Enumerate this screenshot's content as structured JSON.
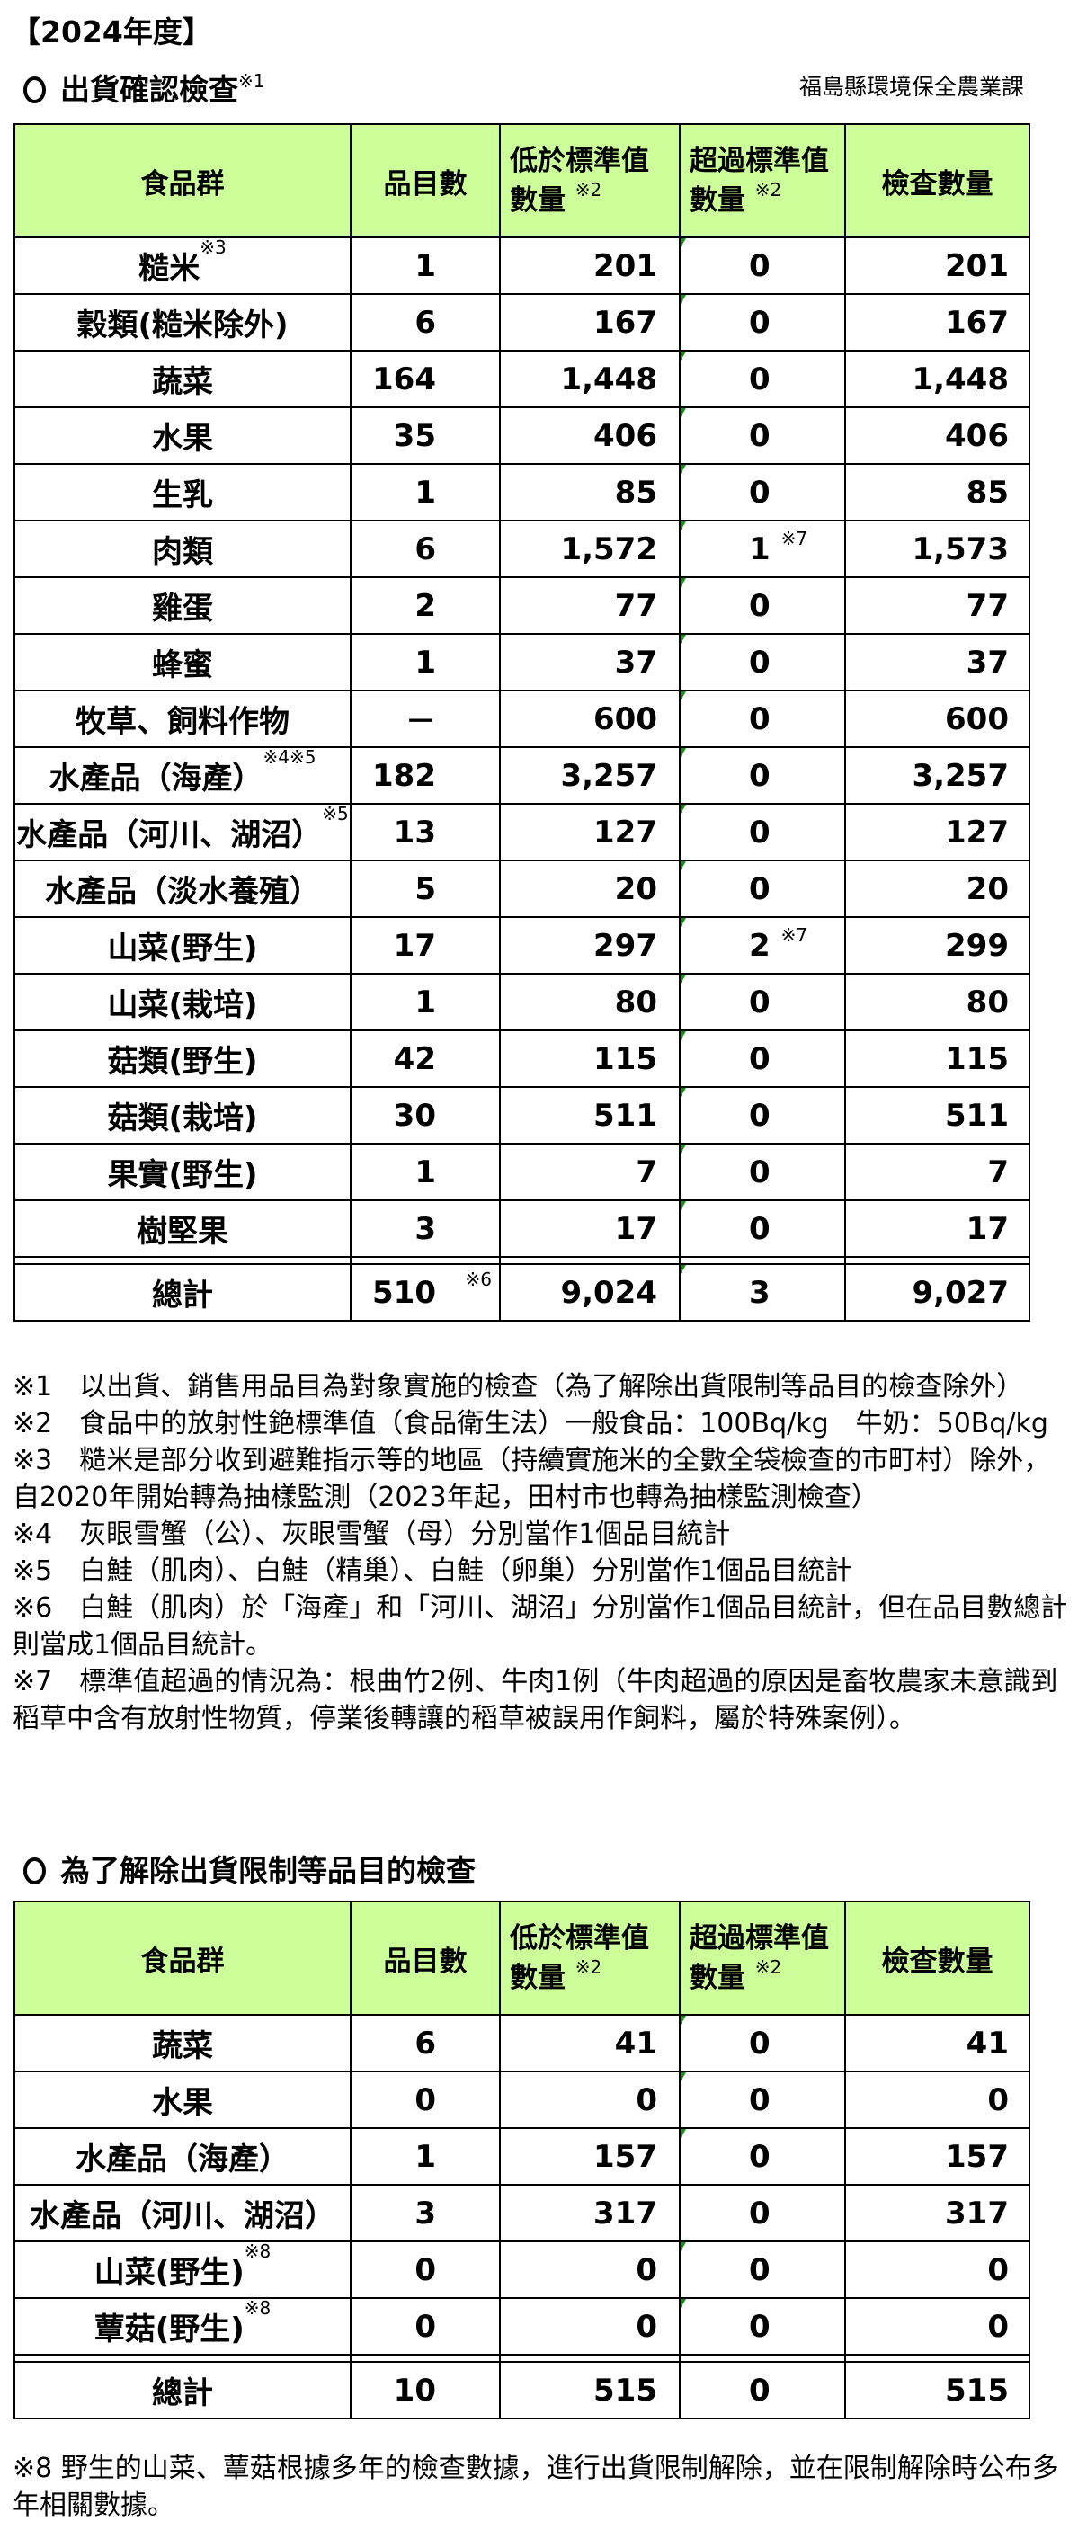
{
  "year_title": "【2024年度】",
  "section1": {
    "title": "出貨確認檢查",
    "title_note": "※1",
    "agency": "福島縣環境保全農業課",
    "headers": {
      "food_group": "食品群",
      "item_count": "品目數",
      "below_line1": "低於標準值",
      "below_line2": "數量",
      "below_note": "※2",
      "above_line1": "超過標準值",
      "above_line2": "數量",
      "above_note": "※2",
      "inspections": "檢查數量"
    },
    "rows": [
      {
        "name": "糙米",
        "note": "※3",
        "items": "1",
        "below": "201",
        "above": "0",
        "above_note": "",
        "total": "201",
        "marker": true
      },
      {
        "name": "穀類(糙米除外)",
        "note": "",
        "items": "6",
        "below": "167",
        "above": "0",
        "above_note": "",
        "total": "167",
        "marker": true
      },
      {
        "name": "蔬菜",
        "note": "",
        "items": "164",
        "below": "1,448",
        "above": "0",
        "above_note": "",
        "total": "1,448",
        "marker": true
      },
      {
        "name": "水果",
        "note": "",
        "items": "35",
        "below": "406",
        "above": "0",
        "above_note": "",
        "total": "406",
        "marker": true
      },
      {
        "name": "生乳",
        "note": "",
        "items": "1",
        "below": "85",
        "above": "0",
        "above_note": "",
        "total": "85",
        "marker": true
      },
      {
        "name": "肉類",
        "note": "",
        "items": "6",
        "below": "1,572",
        "above": "1",
        "above_note": "※7",
        "total": "1,573",
        "marker": true
      },
      {
        "name": "雞蛋",
        "note": "",
        "items": "2",
        "below": "77",
        "above": "0",
        "above_note": "",
        "total": "77",
        "marker": true
      },
      {
        "name": "蜂蜜",
        "note": "",
        "items": "1",
        "below": "37",
        "above": "0",
        "above_note": "",
        "total": "37",
        "marker": true
      },
      {
        "name": "牧草、飼料作物",
        "note": "",
        "items": "－",
        "below": "600",
        "above": "0",
        "above_note": "",
        "total": "600",
        "marker": true
      },
      {
        "name": "水產品（海產）",
        "note": "※4※5",
        "items": "182",
        "below": "3,257",
        "above": "0",
        "above_note": "",
        "total": "3,257",
        "marker": true
      },
      {
        "name": "水產品（河川、湖沼）",
        "note": "※5",
        "items": "13",
        "below": "127",
        "above": "0",
        "above_note": "",
        "total": "127",
        "marker": true
      },
      {
        "name": "水產品（淡水養殖）",
        "note": "",
        "items": "5",
        "below": "20",
        "above": "0",
        "above_note": "",
        "total": "20",
        "marker": true
      },
      {
        "name": "山菜(野生)",
        "note": "",
        "items": "17",
        "below": "297",
        "above": "2",
        "above_note": "※7",
        "total": "299",
        "marker": true
      },
      {
        "name": "山菜(栽培)",
        "note": "",
        "items": "1",
        "below": "80",
        "above": "0",
        "above_note": "",
        "total": "80",
        "marker": true
      },
      {
        "name": "菇類(野生)",
        "note": "",
        "items": "42",
        "below": "115",
        "above": "0",
        "above_note": "",
        "total": "115",
        "marker": true
      },
      {
        "name": "菇類(栽培)",
        "note": "",
        "items": "30",
        "below": "511",
        "above": "0",
        "above_note": "",
        "total": "511",
        "marker": true
      },
      {
        "name": "果實(野生)",
        "note": "",
        "items": "1",
        "below": "7",
        "above": "0",
        "above_note": "",
        "total": "7",
        "marker": true
      },
      {
        "name": "樹堅果",
        "note": "",
        "items": "3",
        "below": "17",
        "above": "0",
        "above_note": "",
        "total": "17",
        "marker": true
      }
    ],
    "total_row": {
      "name": "總計",
      "items": "510",
      "items_note": "※6",
      "below": "9,024",
      "above": "3",
      "total": "9,027",
      "marker": true
    },
    "notes": [
      "※1　以出貨、銷售用品目為對象實施的檢查（為了解除出貨限制等品目的檢查除外）",
      "※2　食品中的放射性銫標準值（食品衛生法）一般食品：100Bq/kg　牛奶：50Bq/kg",
      "※3　糙米是部分收到避難指示等的地區（持續實施米的全數全袋檢查的市町村）除外，自2020年開始轉為抽樣監測（2023年起，田村市也轉為抽樣監測檢查）",
      "※4　灰眼雪蟹（公）、灰眼雪蟹（母）分別當作1個品目統計",
      "※5　白鮭（肌肉）、白鮭（精巢）、白鮭（卵巢）分別當作1個品目統計",
      "※6　白鮭（肌肉）於「海產」和「河川、湖沼」分別當作1個品目統計，但在品目數總計則當成1個品目統計。",
      "※7　標準值超過的情況為：根曲竹2例、牛肉1例（牛肉超過的原因是畜牧農家未意識到稻草中含有放射性物質，停業後轉讓的稻草被誤用作飼料，屬於特殊案例）。"
    ]
  },
  "section2": {
    "title": "為了解除出貨限制等品目的檢查",
    "headers": {
      "food_group": "食品群",
      "item_count": "品目數",
      "below_line1": "低於標準值",
      "below_line2": "數量",
      "below_note": "※2",
      "above_line1": "超過標準值",
      "above_line2": "數量",
      "above_note": "※2",
      "inspections": "檢查數量"
    },
    "rows": [
      {
        "name": "蔬菜",
        "note": "",
        "items": "6",
        "below": "41",
        "above": "0",
        "above_note": "",
        "total": "41",
        "marker": true
      },
      {
        "name": "水果",
        "note": "",
        "items": "0",
        "below": "0",
        "above": "0",
        "above_note": "",
        "total": "0",
        "marker": true
      },
      {
        "name": "水產品（海產）",
        "note": "",
        "items": "1",
        "below": "157",
        "above": "0",
        "above_note": "",
        "total": "157",
        "marker": true
      },
      {
        "name": "水產品（河川、湖沼）",
        "note": "",
        "items": "3",
        "below": "317",
        "above": "0",
        "above_note": "",
        "total": "317",
        "marker": false
      },
      {
        "name": "山菜(野生)",
        "note": "※8",
        "items": "0",
        "below": "0",
        "above": "0",
        "above_note": "",
        "total": "0",
        "marker": true
      },
      {
        "name": "蕈菇(野生)",
        "note": "※8",
        "items": "0",
        "below": "0",
        "above": "0",
        "above_note": "",
        "total": "0",
        "marker": true
      }
    ],
    "total_row": {
      "name": "總計",
      "items": "10",
      "items_note": "",
      "below": "515",
      "above": "0",
      "total": "515",
      "marker": false
    },
    "notes": [
      "※8 野生的山菜、蕈菇根據多年的檢查數據，進行出貨限制解除，並在限制解除時公布多年相關數據。"
    ]
  },
  "colors": {
    "header_bg": "#ccff99",
    "comment_marker": "#1a8a1a"
  }
}
